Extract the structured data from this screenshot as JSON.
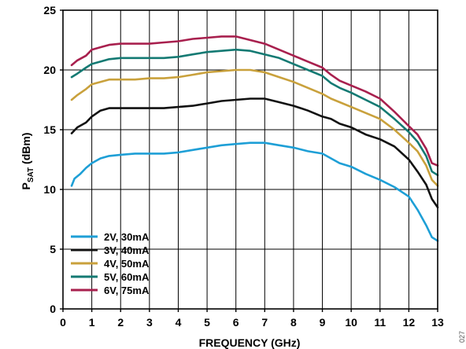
{
  "figure_id": "027",
  "chart_data": {
    "type": "line",
    "title": "",
    "xlabel": "FREQUENCY (GHz)",
    "ylabel": {
      "main": "P",
      "sub": "SAT",
      "unit": " (dBm)"
    },
    "xlim": [
      0,
      13
    ],
    "ylim": [
      0,
      25
    ],
    "xticks": [
      0,
      1,
      2,
      3,
      4,
      5,
      6,
      7,
      8,
      9,
      10,
      11,
      12,
      13
    ],
    "yticks": [
      0,
      5,
      10,
      15,
      20,
      25
    ],
    "grid": true,
    "legend_position": "bottom-left",
    "series": [
      {
        "name": "2V, 30mA",
        "color": "#1e9fd6",
        "points": [
          [
            0.3,
            10.3
          ],
          [
            0.4,
            10.9
          ],
          [
            0.6,
            11.3
          ],
          [
            0.8,
            11.8
          ],
          [
            1.0,
            12.2
          ],
          [
            1.3,
            12.6
          ],
          [
            1.6,
            12.8
          ],
          [
            2.0,
            12.9
          ],
          [
            2.5,
            13.0
          ],
          [
            3.0,
            13.0
          ],
          [
            3.5,
            13.0
          ],
          [
            4.0,
            13.1
          ],
          [
            4.5,
            13.3
          ],
          [
            5.0,
            13.5
          ],
          [
            5.5,
            13.7
          ],
          [
            6.0,
            13.8
          ],
          [
            6.5,
            13.9
          ],
          [
            7.0,
            13.9
          ],
          [
            7.5,
            13.7
          ],
          [
            8.0,
            13.5
          ],
          [
            8.5,
            13.2
          ],
          [
            9.0,
            13.0
          ],
          [
            9.3,
            12.6
          ],
          [
            9.6,
            12.2
          ],
          [
            10.0,
            11.9
          ],
          [
            10.5,
            11.3
          ],
          [
            11.0,
            10.8
          ],
          [
            11.5,
            10.2
          ],
          [
            12.0,
            9.4
          ],
          [
            12.3,
            8.3
          ],
          [
            12.6,
            7.0
          ],
          [
            12.8,
            6.0
          ],
          [
            13.0,
            5.7
          ]
        ]
      },
      {
        "name": "3V, 40mA",
        "color": "#111111",
        "points": [
          [
            0.3,
            14.7
          ],
          [
            0.5,
            15.2
          ],
          [
            0.8,
            15.6
          ],
          [
            1.0,
            16.1
          ],
          [
            1.3,
            16.6
          ],
          [
            1.6,
            16.8
          ],
          [
            2.0,
            16.8
          ],
          [
            2.5,
            16.8
          ],
          [
            3.0,
            16.8
          ],
          [
            3.5,
            16.8
          ],
          [
            4.0,
            16.9
          ],
          [
            4.5,
            17.0
          ],
          [
            5.0,
            17.2
          ],
          [
            5.5,
            17.4
          ],
          [
            6.0,
            17.5
          ],
          [
            6.5,
            17.6
          ],
          [
            7.0,
            17.6
          ],
          [
            7.5,
            17.3
          ],
          [
            8.0,
            17.0
          ],
          [
            8.5,
            16.6
          ],
          [
            9.0,
            16.1
          ],
          [
            9.3,
            15.9
          ],
          [
            9.6,
            15.5
          ],
          [
            10.0,
            15.2
          ],
          [
            10.5,
            14.6
          ],
          [
            11.0,
            14.2
          ],
          [
            11.5,
            13.6
          ],
          [
            12.0,
            12.5
          ],
          [
            12.3,
            11.5
          ],
          [
            12.6,
            10.4
          ],
          [
            12.8,
            9.2
          ],
          [
            13.0,
            8.5
          ]
        ]
      },
      {
        "name": "4V, 50mA",
        "color": "#c9a13c",
        "points": [
          [
            0.3,
            17.5
          ],
          [
            0.5,
            17.9
          ],
          [
            0.8,
            18.4
          ],
          [
            1.0,
            18.8
          ],
          [
            1.3,
            19.0
          ],
          [
            1.6,
            19.2
          ],
          [
            2.0,
            19.2
          ],
          [
            2.5,
            19.2
          ],
          [
            3.0,
            19.3
          ],
          [
            3.5,
            19.3
          ],
          [
            4.0,
            19.4
          ],
          [
            4.5,
            19.6
          ],
          [
            5.0,
            19.8
          ],
          [
            5.5,
            19.9
          ],
          [
            6.0,
            20.0
          ],
          [
            6.5,
            20.0
          ],
          [
            7.0,
            19.8
          ],
          [
            7.5,
            19.4
          ],
          [
            8.0,
            19.0
          ],
          [
            8.5,
            18.5
          ],
          [
            9.0,
            18.0
          ],
          [
            9.3,
            17.6
          ],
          [
            9.6,
            17.3
          ],
          [
            10.0,
            16.9
          ],
          [
            10.5,
            16.4
          ],
          [
            11.0,
            15.9
          ],
          [
            11.5,
            15.0
          ],
          [
            12.0,
            13.9
          ],
          [
            12.3,
            13.2
          ],
          [
            12.6,
            12.0
          ],
          [
            12.8,
            10.8
          ],
          [
            13.0,
            10.3
          ]
        ]
      },
      {
        "name": "5V, 60mA",
        "color": "#147a73",
        "points": [
          [
            0.3,
            19.4
          ],
          [
            0.5,
            19.7
          ],
          [
            0.8,
            20.2
          ],
          [
            1.0,
            20.5
          ],
          [
            1.3,
            20.7
          ],
          [
            1.6,
            20.9
          ],
          [
            2.0,
            21.0
          ],
          [
            2.5,
            21.0
          ],
          [
            3.0,
            21.0
          ],
          [
            3.5,
            21.0
          ],
          [
            4.0,
            21.1
          ],
          [
            4.5,
            21.3
          ],
          [
            5.0,
            21.5
          ],
          [
            5.5,
            21.6
          ],
          [
            6.0,
            21.7
          ],
          [
            6.5,
            21.6
          ],
          [
            7.0,
            21.3
          ],
          [
            7.5,
            21.0
          ],
          [
            8.0,
            20.5
          ],
          [
            8.5,
            20.0
          ],
          [
            9.0,
            19.5
          ],
          [
            9.3,
            18.9
          ],
          [
            9.6,
            18.5
          ],
          [
            10.0,
            18.1
          ],
          [
            10.5,
            17.5
          ],
          [
            11.0,
            16.9
          ],
          [
            11.5,
            15.9
          ],
          [
            12.0,
            14.8
          ],
          [
            12.3,
            14.0
          ],
          [
            12.6,
            12.8
          ],
          [
            12.8,
            11.5
          ],
          [
            13.0,
            11.2
          ]
        ]
      },
      {
        "name": "6V, 75mA",
        "color": "#a8204e",
        "points": [
          [
            0.3,
            20.4
          ],
          [
            0.5,
            20.8
          ],
          [
            0.8,
            21.2
          ],
          [
            1.0,
            21.7
          ],
          [
            1.3,
            21.9
          ],
          [
            1.6,
            22.1
          ],
          [
            2.0,
            22.2
          ],
          [
            2.5,
            22.2
          ],
          [
            3.0,
            22.2
          ],
          [
            3.5,
            22.3
          ],
          [
            4.0,
            22.4
          ],
          [
            4.5,
            22.6
          ],
          [
            5.0,
            22.7
          ],
          [
            5.5,
            22.8
          ],
          [
            6.0,
            22.8
          ],
          [
            6.5,
            22.5
          ],
          [
            7.0,
            22.2
          ],
          [
            7.5,
            21.7
          ],
          [
            8.0,
            21.2
          ],
          [
            8.5,
            20.7
          ],
          [
            9.0,
            20.2
          ],
          [
            9.3,
            19.6
          ],
          [
            9.6,
            19.1
          ],
          [
            10.0,
            18.7
          ],
          [
            10.5,
            18.2
          ],
          [
            11.0,
            17.6
          ],
          [
            11.5,
            16.5
          ],
          [
            12.0,
            15.3
          ],
          [
            12.3,
            14.6
          ],
          [
            12.6,
            13.4
          ],
          [
            12.8,
            12.2
          ],
          [
            13.0,
            12.0
          ]
        ]
      }
    ]
  }
}
